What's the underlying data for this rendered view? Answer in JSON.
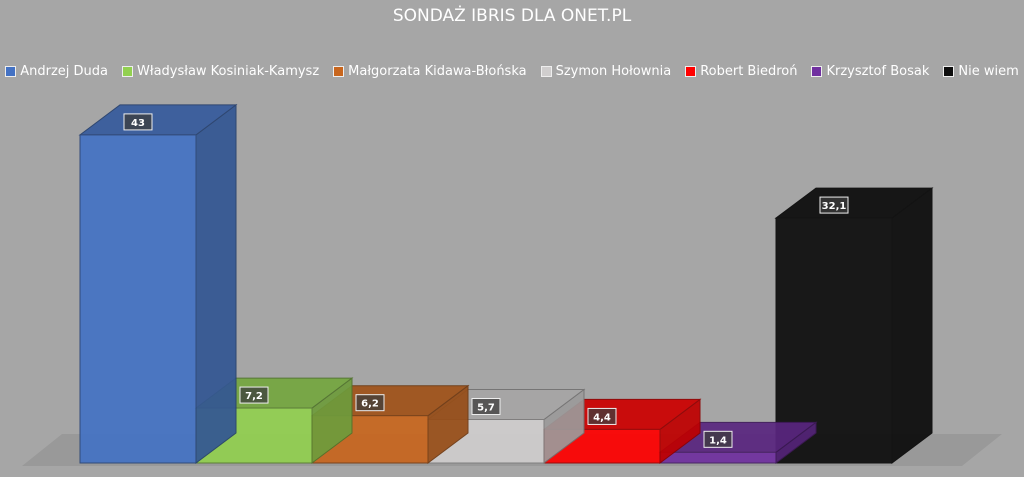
{
  "chart_data": {
    "type": "bar3d",
    "title": "SONDAŻ IBRIS DLA ONET.PL",
    "categories": [
      "Andrzej Duda",
      "Władysław Kosiniak-Kamysz",
      "Małgorzata Kidawa-Błońska",
      "Szymon Hołownia",
      "Robert Biedroń",
      "Krzysztof Bosak",
      "Nie wiem"
    ],
    "values": [
      43,
      7.2,
      6.2,
      5.7,
      4.4,
      1.4,
      32.1
    ],
    "value_labels": [
      "43",
      "7,2",
      "6,2",
      "5,7",
      "4,4",
      "1,4",
      "32,1"
    ],
    "colors": [
      "#4472c4",
      "#92d050",
      "#c8661e",
      "#d0cece",
      "#ff0000",
      "#7030a0",
      "#0d0d0d"
    ],
    "legend": "top"
  }
}
